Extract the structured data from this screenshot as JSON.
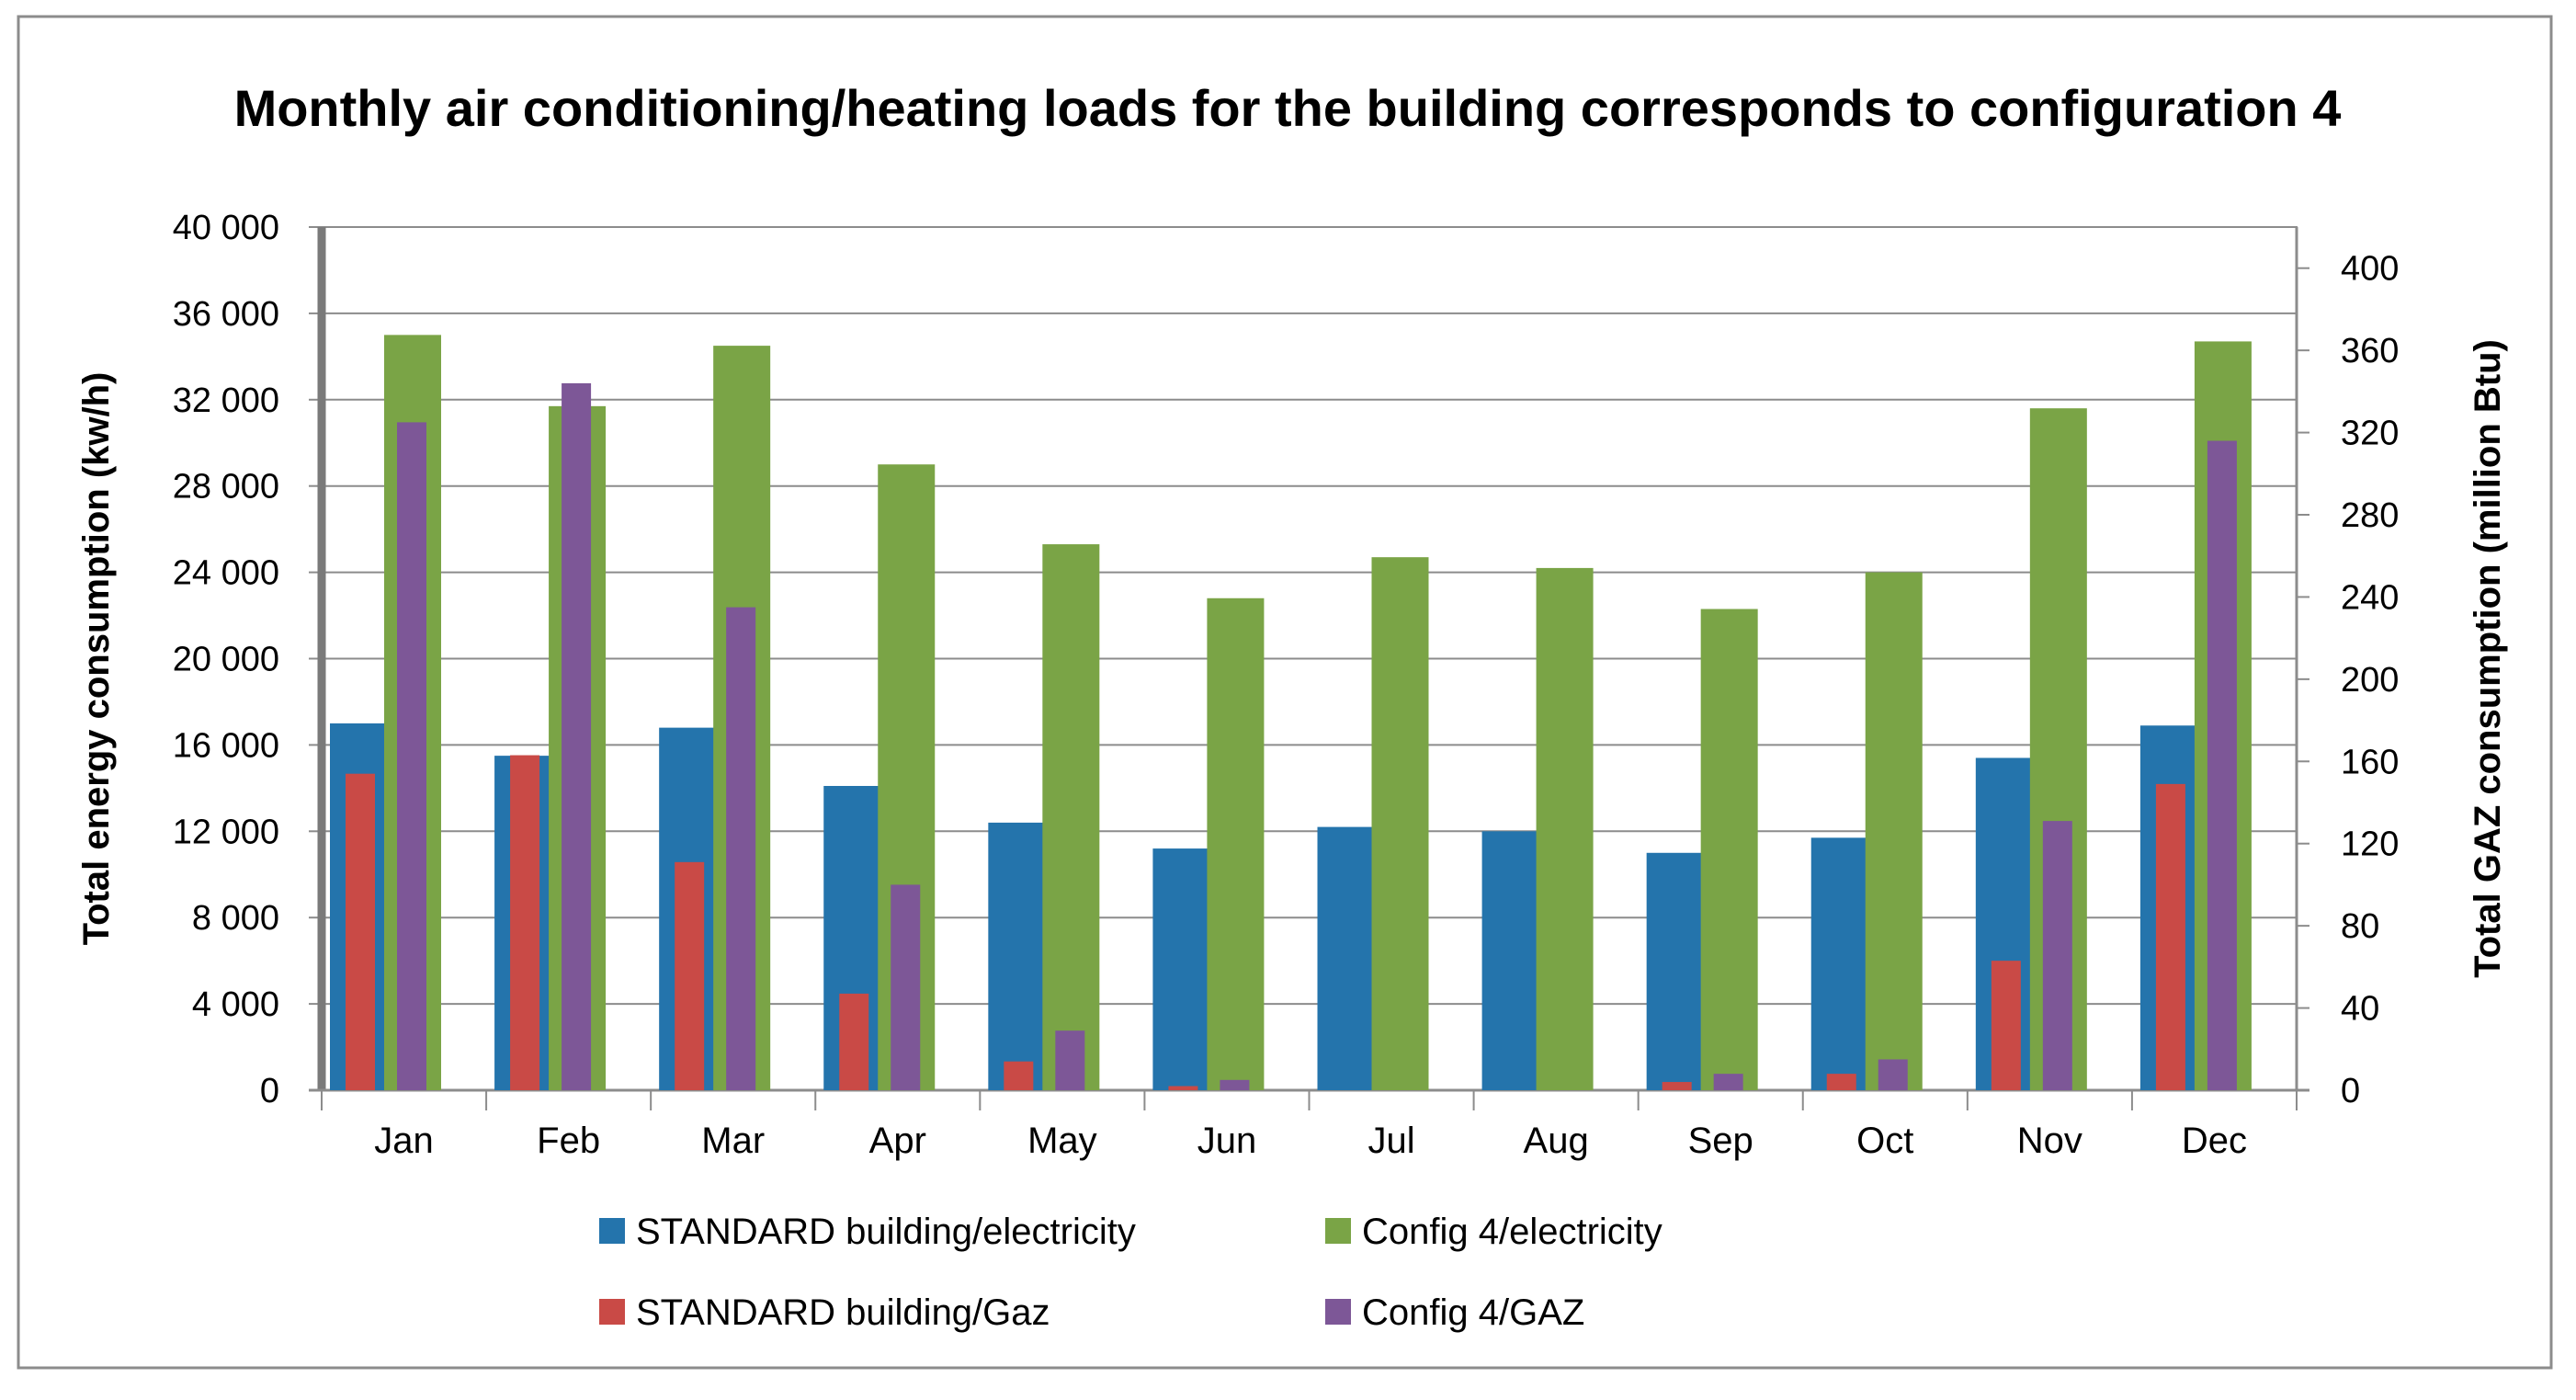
{
  "chart_data": {
    "type": "bar",
    "title": "Monthly air conditioning/heating loads for the building corresponds to configuration 4",
    "categories": [
      "Jan",
      "Feb",
      "Mar",
      "Apr",
      "May",
      "Jun",
      "Jul",
      "Aug",
      "Sep",
      "Oct",
      "Nov",
      "Dec"
    ],
    "ylabel": "Total energy consumption (kw/h)",
    "y2label": "Total GAZ consumption (million Btu)",
    "ylim": [
      0,
      40000
    ],
    "y2lim": [
      0,
      420
    ],
    "yticks": [
      0,
      4000,
      8000,
      12000,
      16000,
      20000,
      24000,
      28000,
      32000,
      36000,
      40000
    ],
    "ytick_labels": [
      "0",
      "4 000",
      "8 000",
      "12 000",
      "16 000",
      "20 000",
      "24 000",
      "28 000",
      "32 000",
      "36 000",
      "40 000"
    ],
    "y2ticks": [
      0,
      40,
      80,
      120,
      160,
      200,
      240,
      280,
      320,
      360,
      400
    ],
    "y2tick_labels": [
      "0",
      "40",
      "80",
      "120",
      "160",
      "200",
      "240",
      "280",
      "320",
      "360",
      "400"
    ],
    "grid": true,
    "legend_position": "bottom",
    "series": [
      {
        "name": "STANDARD building/electricity",
        "axis": "left",
        "color": "#2474ac",
        "values": [
          17000,
          15500,
          16800,
          14100,
          12400,
          11200,
          12200,
          12000,
          11000,
          11700,
          15400,
          16900
        ]
      },
      {
        "name": "Config 4/electricity",
        "axis": "left",
        "color": "#7aa446",
        "values": [
          35000,
          31700,
          34500,
          29000,
          25300,
          22800,
          24700,
          24200,
          22300,
          24000,
          31600,
          34700
        ]
      },
      {
        "name": "STANDARD building/Gaz",
        "axis": "right",
        "color": "#c94a46",
        "values": [
          154,
          163,
          111,
          47,
          14,
          2,
          0,
          0,
          4,
          8,
          63,
          149
        ]
      },
      {
        "name": "Config 4/GAZ",
        "axis": "right",
        "color": "#7d5797",
        "values": [
          325,
          344,
          235,
          100,
          29,
          5,
          0,
          0,
          8,
          15,
          131,
          316
        ]
      }
    ]
  }
}
